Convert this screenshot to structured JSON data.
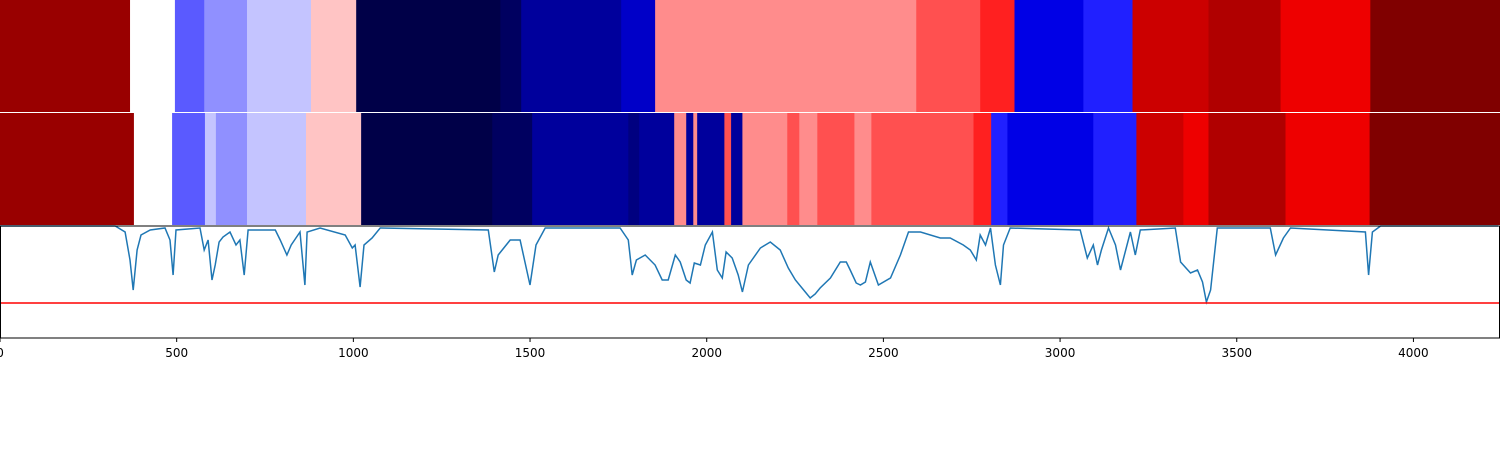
{
  "chart_data": {
    "type": "line",
    "xlim": [
      0,
      4245
    ],
    "ylim": [
      0,
      112
    ],
    "xticks": [
      0,
      500,
      1000,
      1500,
      2000,
      2500,
      3000,
      3500,
      4000
    ],
    "color": "#1f77b4",
    "hline": {
      "value": 35,
      "color": "#ff0000"
    },
    "bands": [
      {
        "segments": [
          {
            "start": 0,
            "end": 368,
            "color": "#990000"
          },
          {
            "start": 368,
            "end": 495,
            "color": "#ffffff"
          },
          {
            "start": 495,
            "end": 578,
            "color": "#5a5aff"
          },
          {
            "start": 578,
            "end": 699,
            "color": "#9090ff"
          },
          {
            "start": 699,
            "end": 880,
            "color": "#c4c4ff"
          },
          {
            "start": 880,
            "end": 1008,
            "color": "#ffc4c4"
          },
          {
            "start": 1008,
            "end": 1416,
            "color": "#000048"
          },
          {
            "start": 1416,
            "end": 1475,
            "color": "#000060"
          },
          {
            "start": 1475,
            "end": 1758,
            "color": "#00009c"
          },
          {
            "start": 1758,
            "end": 1854,
            "color": "#0000c8"
          },
          {
            "start": 1854,
            "end": 2593,
            "color": "#ff8c8c"
          },
          {
            "start": 2593,
            "end": 2774,
            "color": "#ff5050"
          },
          {
            "start": 2774,
            "end": 2871,
            "color": "#ff2020"
          },
          {
            "start": 2871,
            "end": 3066,
            "color": "#0000e6"
          },
          {
            "start": 3066,
            "end": 3205,
            "color": "#2020ff"
          },
          {
            "start": 3205,
            "end": 3420,
            "color": "#cc0000"
          },
          {
            "start": 3420,
            "end": 3624,
            "color": "#b00000"
          },
          {
            "start": 3624,
            "end": 3878,
            "color": "#ee0000"
          },
          {
            "start": 3878,
            "end": 4245,
            "color": "#800000"
          }
        ]
      },
      {
        "segments": [
          {
            "start": 0,
            "end": 379,
            "color": "#990000"
          },
          {
            "start": 379,
            "end": 487,
            "color": "#ffffff"
          },
          {
            "start": 487,
            "end": 580,
            "color": "#5a5aff"
          },
          {
            "start": 580,
            "end": 611,
            "color": "#c4c4ff"
          },
          {
            "start": 611,
            "end": 699,
            "color": "#9090ff"
          },
          {
            "start": 699,
            "end": 866,
            "color": "#c4c4ff"
          },
          {
            "start": 866,
            "end": 1022,
            "color": "#ffc4c4"
          },
          {
            "start": 1022,
            "end": 1393,
            "color": "#000048"
          },
          {
            "start": 1393,
            "end": 1506,
            "color": "#000060"
          },
          {
            "start": 1506,
            "end": 1778,
            "color": "#00009c"
          },
          {
            "start": 1778,
            "end": 1809,
            "color": "#000080"
          },
          {
            "start": 1809,
            "end": 1908,
            "color": "#00009c"
          },
          {
            "start": 1908,
            "end": 1942,
            "color": "#ff8c8c"
          },
          {
            "start": 1942,
            "end": 1962,
            "color": "#00009c"
          },
          {
            "start": 1962,
            "end": 1973,
            "color": "#ff8c8c"
          },
          {
            "start": 1973,
            "end": 2050,
            "color": "#00009c"
          },
          {
            "start": 2050,
            "end": 2069,
            "color": "#ff5050"
          },
          {
            "start": 2069,
            "end": 2101,
            "color": "#00009c"
          },
          {
            "start": 2101,
            "end": 2228,
            "color": "#ff8c8c"
          },
          {
            "start": 2228,
            "end": 2262,
            "color": "#ff5050"
          },
          {
            "start": 2262,
            "end": 2313,
            "color": "#ff8c8c"
          },
          {
            "start": 2313,
            "end": 2418,
            "color": "#ff5050"
          },
          {
            "start": 2418,
            "end": 2466,
            "color": "#ff8c8c"
          },
          {
            "start": 2466,
            "end": 2755,
            "color": "#ff5050"
          },
          {
            "start": 2755,
            "end": 2805,
            "color": "#ff2020"
          },
          {
            "start": 2805,
            "end": 2851,
            "color": "#2020ff"
          },
          {
            "start": 2851,
            "end": 3094,
            "color": "#0000e6"
          },
          {
            "start": 3094,
            "end": 3216,
            "color": "#2020ff"
          },
          {
            "start": 3216,
            "end": 3349,
            "color": "#cc0000"
          },
          {
            "start": 3349,
            "end": 3420,
            "color": "#ee0000"
          },
          {
            "start": 3420,
            "end": 3638,
            "color": "#b00000"
          },
          {
            "start": 3638,
            "end": 3876,
            "color": "#ee0000"
          },
          {
            "start": 3876,
            "end": 4245,
            "color": "#800000"
          }
        ]
      }
    ],
    "x": [
      0,
      326,
      354,
      368,
      377,
      388,
      399,
      425,
      467,
      481,
      490,
      498,
      566,
      578,
      589,
      600,
      609,
      620,
      631,
      651,
      668,
      679,
      691,
      702,
      779,
      793,
      812,
      824,
      849,
      863,
      869,
      906,
      977,
      997,
      1005,
      1019,
      1030,
      1053,
      1076,
      1382,
      1399,
      1410,
      1444,
      1472,
      1500,
      1517,
      1543,
      1755,
      1778,
      1789,
      1801,
      1826,
      1854,
      1874,
      1891,
      1911,
      1925,
      1942,
      1953,
      1965,
      1982,
      1996,
      2016,
      2030,
      2044,
      2055,
      2072,
      2089,
      2101,
      2118,
      2152,
      2180,
      2208,
      2231,
      2251,
      2279,
      2293,
      2307,
      2321,
      2350,
      2378,
      2395,
      2406,
      2423,
      2435,
      2449,
      2463,
      2486,
      2520,
      2548,
      2571,
      2605,
      2661,
      2689,
      2726,
      2746,
      2763,
      2774,
      2789,
      2803,
      2817,
      2831,
      2840,
      2859,
      3057,
      3077,
      3094,
      3106,
      3117,
      3137,
      3157,
      3171,
      3199,
      3213,
      3227,
      3326,
      3341,
      3369,
      3389,
      3403,
      3414,
      3426,
      3445,
      3595,
      3610,
      3632,
      3652,
      3864,
      3873,
      3884,
      3907,
      4240
    ],
    "values": [
      112,
      112,
      106,
      78,
      48,
      88,
      103,
      108,
      110,
      98,
      63,
      108,
      110,
      88,
      98,
      58,
      73,
      96,
      101,
      106,
      93,
      98,
      63,
      108,
      108,
      98,
      83,
      93,
      106,
      53,
      106,
      110,
      103,
      90,
      93,
      51,
      93,
      100,
      110,
      108,
      66,
      83,
      98,
      98,
      53,
      93,
      110,
      110,
      98,
      63,
      78,
      83,
      73,
      58,
      58,
      83,
      76,
      58,
      55,
      75,
      73,
      93,
      106,
      68,
      60,
      86,
      80,
      63,
      46,
      73,
      90,
      96,
      88,
      70,
      58,
      46,
      40,
      44,
      50,
      60,
      76,
      76,
      68,
      55,
      53,
      56,
      76,
      53,
      60,
      83,
      106,
      106,
      100,
      100,
      93,
      88,
      78,
      103,
      93,
      110,
      73,
      53,
      93,
      110,
      108,
      80,
      93,
      73,
      88,
      110,
      93,
      68,
      106,
      83,
      108,
      110,
      76,
      65,
      68,
      56,
      36,
      48,
      110,
      110,
      83,
      100,
      110,
      106,
      63,
      106,
      112,
      112
    ]
  }
}
